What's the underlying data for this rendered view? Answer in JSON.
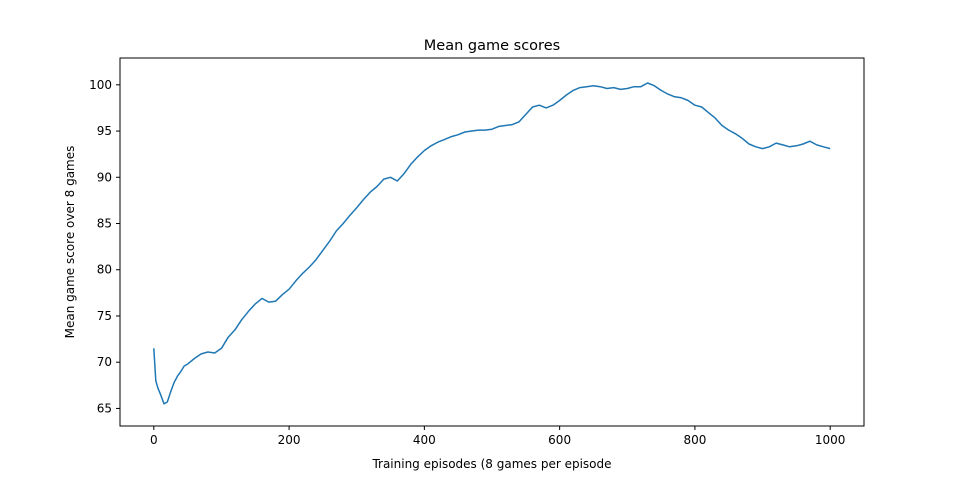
{
  "chart_data": {
    "type": "line",
    "title": "Mean game scores",
    "xlabel": "Training episodes (8 games per episode",
    "ylabel": "Mean game score over 8 games",
    "xlim": [
      -50,
      1050
    ],
    "ylim": [
      63.1,
      102.9
    ],
    "xticks": [
      0,
      200,
      400,
      600,
      800,
      1000
    ],
    "yticks": [
      65,
      70,
      75,
      80,
      85,
      90,
      95,
      100
    ],
    "grid": false,
    "colors": {
      "line": "#1f77b4",
      "axis": "#000000",
      "background": "#ffffff"
    },
    "series": [
      {
        "name": "Mean game score",
        "x": [
          0,
          3,
          6,
          10,
          15,
          20,
          25,
          30,
          35,
          40,
          45,
          50,
          60,
          70,
          80,
          90,
          100,
          110,
          120,
          130,
          140,
          150,
          160,
          170,
          180,
          190,
          200,
          210,
          220,
          230,
          240,
          250,
          260,
          270,
          280,
          290,
          300,
          310,
          320,
          330,
          340,
          350,
          360,
          370,
          380,
          390,
          400,
          410,
          420,
          430,
          440,
          450,
          460,
          470,
          480,
          490,
          500,
          510,
          520,
          530,
          540,
          550,
          560,
          570,
          580,
          590,
          600,
          610,
          620,
          630,
          640,
          650,
          660,
          670,
          680,
          690,
          700,
          710,
          720,
          730,
          740,
          750,
          760,
          770,
          780,
          790,
          800,
          810,
          820,
          830,
          840,
          850,
          860,
          870,
          880,
          890,
          900,
          910,
          920,
          930,
          940,
          950,
          960,
          970,
          980,
          990,
          1000
        ],
        "y": [
          71.5,
          68.0,
          67.2,
          66.5,
          65.5,
          65.7,
          66.8,
          67.8,
          68.5,
          69.0,
          69.6,
          69.8,
          70.4,
          70.9,
          71.1,
          71.0,
          71.5,
          72.7,
          73.5,
          74.6,
          75.5,
          76.3,
          76.9,
          76.5,
          76.6,
          77.3,
          77.9,
          78.8,
          79.6,
          80.3,
          81.1,
          82.1,
          83.1,
          84.2,
          85.0,
          85.9,
          86.7,
          87.6,
          88.4,
          89.0,
          89.8,
          90.0,
          89.6,
          90.4,
          91.4,
          92.2,
          92.9,
          93.4,
          93.8,
          94.1,
          94.4,
          94.6,
          94.9,
          95.0,
          95.1,
          95.1,
          95.2,
          95.5,
          95.6,
          95.7,
          96.0,
          96.8,
          97.6,
          97.8,
          97.5,
          97.8,
          98.3,
          98.9,
          99.4,
          99.7,
          99.8,
          99.9,
          99.8,
          99.6,
          99.7,
          99.5,
          99.6,
          99.8,
          99.8,
          100.2,
          99.9,
          99.4,
          99.0,
          98.7,
          98.6,
          98.3,
          97.8,
          97.6,
          97.0,
          96.4,
          95.6,
          95.1,
          94.7,
          94.2,
          93.6,
          93.3,
          93.1,
          93.3,
          93.7,
          93.5,
          93.3,
          93.4,
          93.6,
          93.9,
          93.5,
          93.3,
          93.1
        ]
      }
    ]
  }
}
